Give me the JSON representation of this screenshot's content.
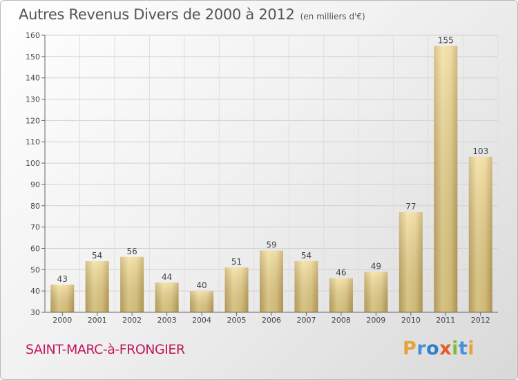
{
  "title": "Autres Revenus Divers de 2000 à 2012",
  "unit": "(en milliers d'€)",
  "commune": "SAINT-MARC-à-FRONGIER",
  "logo": {
    "p": "P",
    "r": "r",
    "o": "o",
    "x": "x",
    "i": "i",
    "t": "t",
    "i2": "i"
  },
  "colors": {
    "bar_light": "#f6e3a0",
    "bar_dark": "#c9ad66",
    "grid": "#cfcfcf",
    "commune": "#c2185b"
  },
  "chart_data": {
    "type": "bar",
    "categories": [
      "2000",
      "2001",
      "2002",
      "2003",
      "2004",
      "2005",
      "2006",
      "2007",
      "2008",
      "2009",
      "2010",
      "2011",
      "2012"
    ],
    "values": [
      43,
      54,
      56,
      44,
      40,
      51,
      59,
      54,
      46,
      49,
      77,
      155,
      103
    ],
    "ylim": [
      30,
      160
    ],
    "yticks": [
      30,
      40,
      50,
      60,
      70,
      80,
      90,
      100,
      110,
      120,
      130,
      140,
      150,
      160
    ],
    "grid": true
  }
}
